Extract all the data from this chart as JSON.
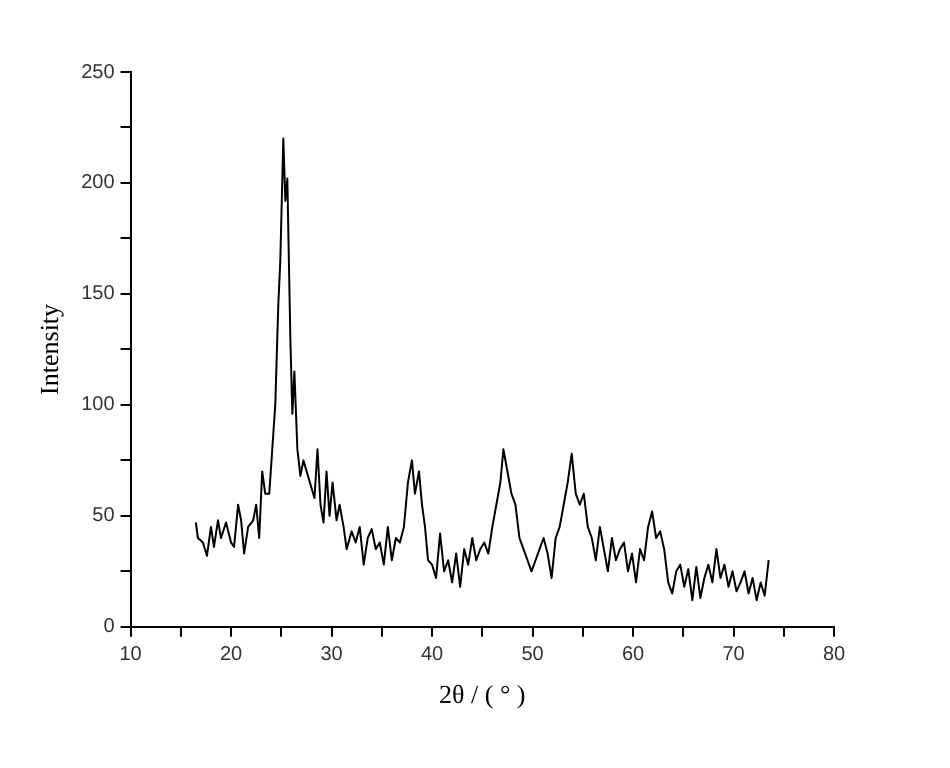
{
  "chart_data": {
    "type": "line",
    "xlabel": "2θ / ( ° )",
    "ylabel": "Intensity",
    "xlim": [
      10,
      80
    ],
    "ylim": [
      0,
      250
    ],
    "xticks": [
      10,
      {
        "value": 15,
        "label": null
      },
      20,
      {
        "value": 25,
        "label": null
      },
      30,
      {
        "value": 35,
        "label": null
      },
      40,
      {
        "value": 45,
        "label": null
      },
      50,
      {
        "value": 55,
        "label": null
      },
      60,
      {
        "value": 65,
        "label": null
      },
      70,
      {
        "value": 75,
        "label": null
      },
      80
    ],
    "yticks": [
      0,
      {
        "value": 25,
        "label": null
      },
      50,
      {
        "value": 75,
        "label": null
      },
      100,
      {
        "value": 125,
        "label": null
      },
      150,
      {
        "value": 175,
        "label": null
      },
      200,
      {
        "value": 225,
        "label": null
      },
      250
    ],
    "grid": false,
    "legend": false,
    "marker": "none",
    "line_style": "solid",
    "series": [
      {
        "color": "#000000",
        "x": [
          16.5,
          16.7,
          17.2,
          17.6,
          18,
          18.3,
          18.7,
          19,
          19.5,
          20,
          20.3,
          20.7,
          21,
          21.3,
          21.7,
          22.2,
          22.5,
          22.8,
          23.1,
          23.4,
          23.8,
          24.1,
          24.4,
          24.7,
          24.9,
          25.2,
          25.4,
          25.6,
          25.9,
          26.1,
          26.3,
          26.6,
          26.9,
          27.2,
          28.3,
          28.6,
          28.9,
          29.2,
          29.5,
          29.8,
          30.1,
          30.5,
          30.8,
          31.2,
          31.5,
          32,
          32.4,
          32.8,
          33.2,
          33.6,
          34,
          34.4,
          34.8,
          35.2,
          35.6,
          36,
          36.4,
          36.8,
          37.2,
          37.6,
          38,
          38.3,
          38.7,
          39,
          39.3,
          39.6,
          40,
          40.4,
          40.8,
          41.2,
          41.6,
          42,
          42.4,
          42.8,
          43.2,
          43.6,
          44,
          44.4,
          44.8,
          45.2,
          45.6,
          46,
          46.4,
          46.8,
          47.1,
          47.5,
          47.9,
          48.3,
          48.7,
          49.1,
          49.5,
          49.9,
          50.3,
          50.7,
          51.1,
          51.5,
          51.9,
          52.3,
          52.7,
          53.1,
          53.5,
          53.9,
          54.3,
          54.7,
          55.1,
          55.5,
          55.9,
          56.3,
          56.7,
          57.1,
          57.5,
          57.9,
          58.3,
          58.7,
          59.1,
          59.5,
          59.9,
          60.3,
          60.7,
          61.1,
          61.5,
          61.9,
          62.3,
          62.7,
          63.1,
          63.5,
          63.9,
          64.3,
          64.7,
          65.1,
          65.5,
          65.9,
          66.3,
          66.7,
          67.1,
          67.5,
          67.9,
          68.3,
          68.7,
          69.1,
          69.5,
          69.9,
          70.3,
          70.7,
          71.1,
          71.5,
          71.9,
          72.3,
          72.7,
          73.1,
          73.5
        ],
        "values": [
          47,
          40,
          38,
          32,
          45,
          36,
          48,
          40,
          47,
          38,
          36,
          55,
          48,
          33,
          45,
          48,
          55,
          40,
          70,
          60,
          60,
          80,
          100,
          145,
          165,
          220,
          192,
          202,
          130,
          96,
          115,
          80,
          68,
          75,
          58,
          80,
          55,
          47,
          70,
          50,
          65,
          48,
          55,
          45,
          35,
          43,
          38,
          45,
          28,
          40,
          44,
          35,
          38,
          28,
          45,
          30,
          40,
          38,
          45,
          65,
          75,
          60,
          70,
          55,
          45,
          30,
          28,
          22,
          42,
          25,
          30,
          20,
          33,
          18,
          35,
          28,
          40,
          30,
          35,
          38,
          33,
          45,
          55,
          65,
          80,
          70,
          60,
          55,
          40,
          35,
          30,
          25,
          30,
          35,
          40,
          33,
          22,
          40,
          45,
          55,
          65,
          78,
          60,
          55,
          60,
          45,
          40,
          30,
          45,
          35,
          25,
          40,
          30,
          35,
          38,
          25,
          33,
          20,
          35,
          30,
          45,
          52,
          40,
          43,
          35,
          20,
          15,
          25,
          28,
          18,
          26,
          12,
          27,
          13,
          22,
          28,
          20,
          35,
          22,
          28,
          18,
          25,
          16,
          20,
          25,
          15,
          22,
          12,
          20,
          14,
          30
        ]
      }
    ]
  }
}
